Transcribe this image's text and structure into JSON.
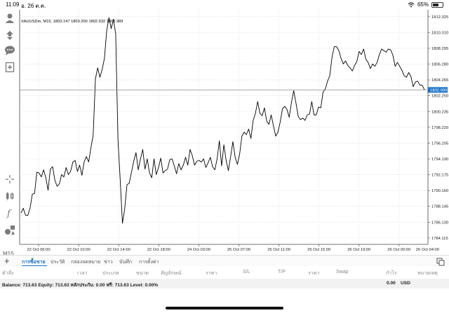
{
  "status": {
    "time": "11:09",
    "date": "อ. 26 ต.ค.",
    "battery": "65%",
    "battery_level": 0.65
  },
  "chart": {
    "symbol_info": "XAUUSDm, M15, 1803.147 1803.200 1802.932 1802.989",
    "timeframe": "M15",
    "current_price": "1802.989",
    "accent_color": "#1a73c7"
  },
  "chart_data": {
    "type": "line",
    "title": "XAUUSDm, M15, 1803.147 1803.200 1802.932 1802.989",
    "xlabel": "",
    "ylabel": "",
    "grid": true,
    "ylim": [
      1783.3,
      1813.2
    ],
    "y_ticks": [
      "1812.325",
      "1810.310",
      "1808.295",
      "1806.280",
      "1804.265",
      "1802.250",
      "1800.235",
      "1798.220",
      "1796.205",
      "1794.190",
      "1792.175",
      "1790.160",
      "1788.145",
      "1786.130",
      "1784.115"
    ],
    "x_ticks": [
      "22 Oct 06:00",
      "22 Oct 10:00",
      "22 Oct 14:00",
      "22 Oct 18:00",
      "24 Oct 03:00",
      "25 Oct 07:00",
      "25 Oct 11:00",
      "25 Oct 15:00",
      "26 Oct 19:00",
      "26 Oct 00:00",
      "26 Oct 04:00"
    ],
    "current_price_line": 1802.989,
    "series": [
      {
        "values": [
          1787.3,
          1787.9,
          1787.0,
          1787.0,
          1787.9,
          1789.7,
          1789.8,
          1792.5,
          1792.4,
          1791.9,
          1792.8,
          1791.8,
          1790.2,
          1792.9,
          1793.2,
          1791.5,
          1790.7,
          1791.0,
          1792.2,
          1791.9,
          1793.1,
          1792.2,
          1792.6,
          1793.8,
          1794.0,
          1792.6,
          1793.4,
          1792.1,
          1793.8,
          1794.5,
          1793.8,
          1795.6,
          1797.2,
          1804.4,
          1805.8,
          1804.6,
          1805.6,
          1807.0,
          1810.5,
          1812.2,
          1810.8,
          1812.0,
          1810.1,
          1796.7,
          1791.5,
          1786.0,
          1787.8,
          1790.9,
          1791.1,
          1792.5,
          1793.9,
          1795.0,
          1792.8,
          1794.2,
          1795.4,
          1792.9,
          1794.2,
          1792.4,
          1791.8,
          1794.2,
          1792.2,
          1793.1,
          1794.3,
          1792.4,
          1792.7,
          1792.9,
          1794.1,
          1794.2,
          1793.3,
          1792.3,
          1793.6,
          1792.8,
          1793.4,
          1794.4,
          1793.4,
          1795.4,
          1794.6,
          1793.4,
          1793.9,
          1794.0,
          1793.8,
          1794.2,
          1793.1,
          1793.7,
          1794.4,
          1793.2,
          1792.8,
          1794.2,
          1796.5,
          1793.3,
          1796.0,
          1794.0,
          1792.7,
          1794.5,
          1796.4,
          1794.4,
          1793.5,
          1794.8,
          1797.1,
          1797.6,
          1797.3,
          1798.0,
          1796.8,
          1799.1,
          1800.0,
          1801.5,
          1800.0,
          1799.7,
          1800.7,
          1799.0,
          1798.6,
          1799.8,
          1798.4,
          1797.1,
          1797.6,
          1798.9,
          1800.6,
          1800.9,
          1800.5,
          1799.5,
          1801.4,
          1802.9,
          1801.3,
          1799.6,
          1799.2,
          1799.4,
          1799.1,
          1799.8,
          1799.9,
          1801.5,
          1799.8,
          1799.8,
          1800.8,
          1800.7,
          1802.7,
          1803.1,
          1804.1,
          1804.8,
          1807.2,
          1808.5,
          1808.5,
          1808.0,
          1807.0,
          1806.3,
          1806.7,
          1806.1,
          1805.8,
          1805.4,
          1806.1,
          1806.6,
          1807.9,
          1807.5,
          1808.2,
          1806.9,
          1806.5,
          1805.7,
          1806.3,
          1806.0,
          1806.5,
          1807.5,
          1808.2,
          1808.0,
          1807.8,
          1808.2,
          1808.1,
          1807.4,
          1806.0,
          1806.5,
          1806.0,
          1805.5,
          1804.8,
          1804.6,
          1805.2,
          1804.7,
          1803.4,
          1804.0,
          1804.1,
          1803.6,
          1803.6,
          1802.99
        ]
      }
    ]
  },
  "bottom_tabs": {
    "add_label": "+",
    "items": [
      "การซื้อขาย",
      "ประวัติ",
      "กล่องจดหมาย",
      "ข่าว",
      "บันทึก",
      "การตั้งค่า"
    ],
    "active_index": 0
  },
  "table_headers": [
    "คำสั่ง",
    "เวลา",
    "ประเภท",
    "ขนาด",
    "สัญลักษณ์",
    "ราคา",
    "S/L",
    "T/P",
    "ราคา",
    "Swap",
    "กำไร",
    "หมายเหตุ"
  ],
  "balance": {
    "summary": "Balance: 713.63 Equity: 713.63 หลักประกัน: 0.00 ฟรี: 713.63 Level: 0.00%",
    "profit": "0.00",
    "currency": "USD"
  },
  "toolbar": {
    "icons": [
      "person-icon",
      "buy-sell-icon",
      "chat-icon",
      "add-chart-icon",
      "crosshair-icon",
      "chart-type-icon",
      "indicators-icon",
      "objects-icon"
    ]
  }
}
